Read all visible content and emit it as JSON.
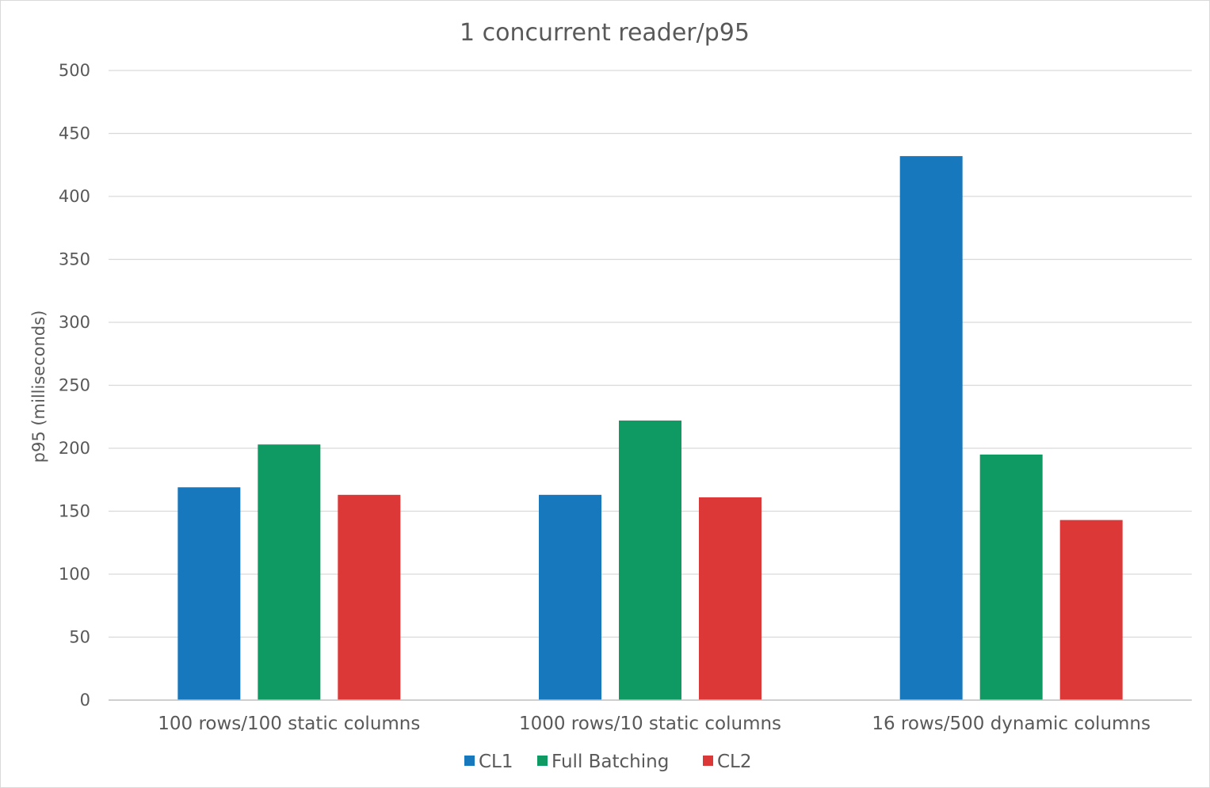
{
  "chart_data": {
    "type": "bar",
    "title": "1 concurrent reader/p95",
    "xlabel": "",
    "ylabel": "p95 (milliseconds)",
    "ylim": [
      0,
      500
    ],
    "yticks": [
      0,
      50,
      100,
      150,
      200,
      250,
      300,
      350,
      400,
      450,
      500
    ],
    "grid": true,
    "legend_position": "bottom",
    "categories": [
      "100 rows/100 static columns",
      "1000 rows/10 static columns",
      "16 rows/500 dynamic columns"
    ],
    "series": [
      {
        "name": "CL1",
        "color": "#1778be",
        "values": [
          169,
          163,
          432
        ]
      },
      {
        "name": "Full Batching",
        "color": "#109a63",
        "values": [
          203,
          222,
          195
        ]
      },
      {
        "name": "CL2",
        "color": "#dc3838",
        "values": [
          163,
          161,
          143
        ]
      }
    ]
  }
}
